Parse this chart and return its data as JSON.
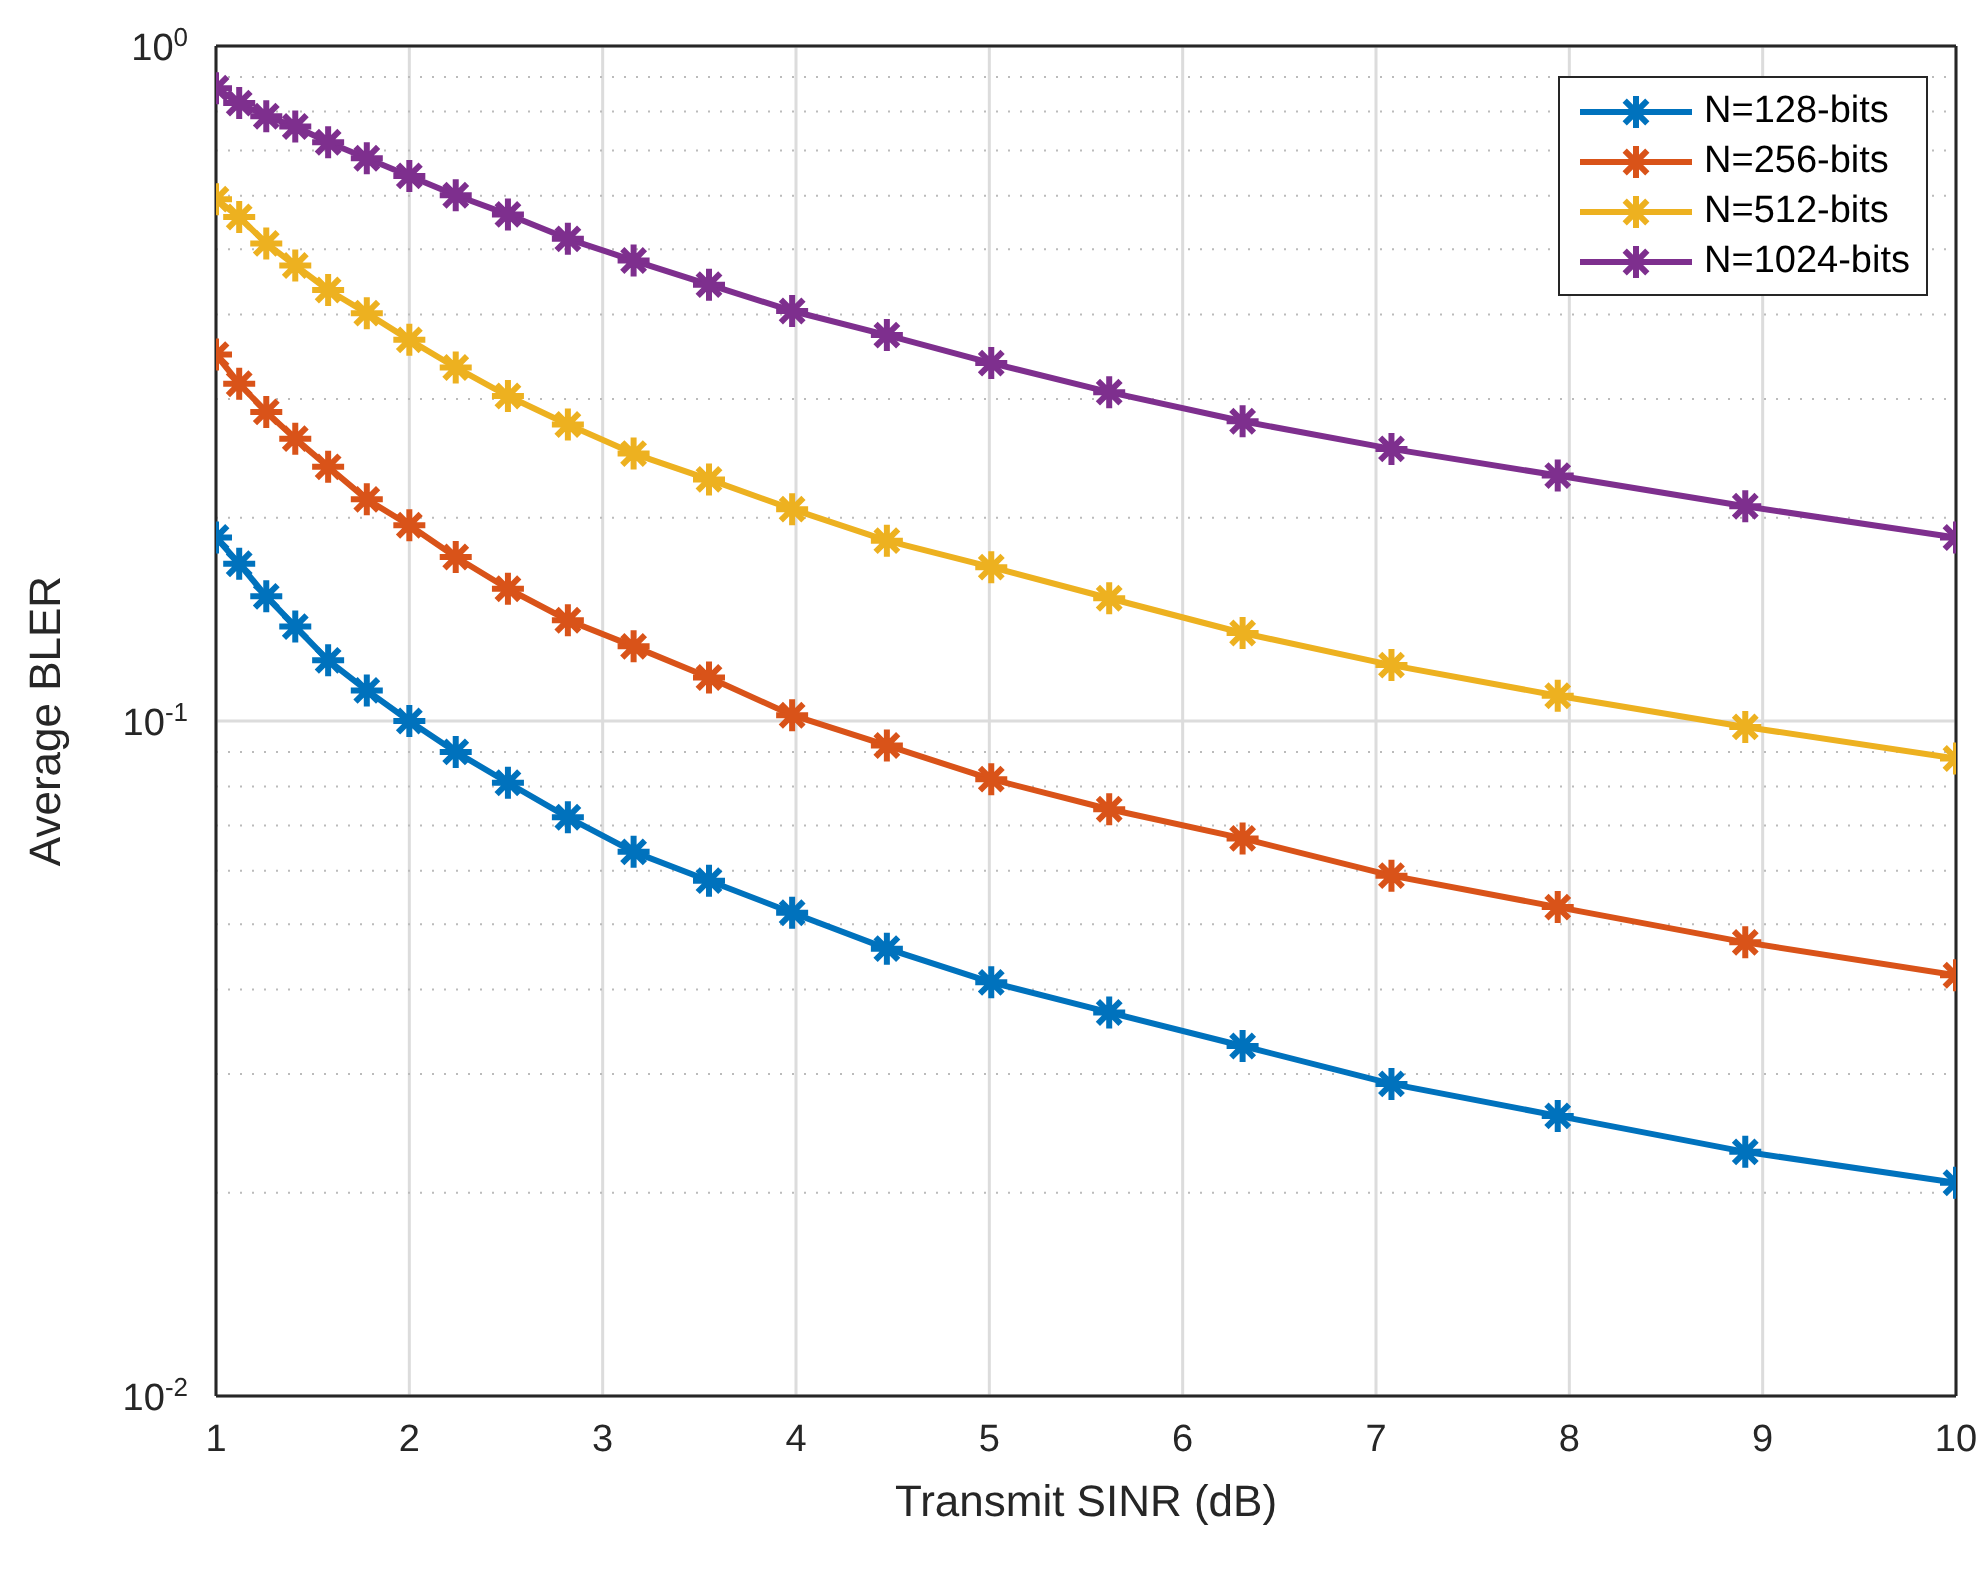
{
  "chart_data": {
    "type": "line",
    "xlabel": "Transmit SINR (dB)",
    "ylabel": "Average BLER",
    "x": [
      1,
      1.12,
      1.26,
      1.41,
      1.58,
      1.78,
      2,
      2.24,
      2.51,
      2.82,
      3.16,
      3.55,
      3.98,
      4.47,
      5.01,
      5.62,
      6.31,
      7.08,
      7.94,
      8.91,
      10
    ],
    "series": [
      {
        "name": "N=128-bits",
        "color": "#0072bd",
        "values": [
          0.187,
          0.171,
          0.153,
          0.138,
          0.123,
          0.111,
          0.1,
          0.09,
          0.081,
          0.072,
          0.064,
          0.058,
          0.052,
          0.046,
          0.041,
          0.037,
          0.033,
          0.029,
          0.026,
          0.023,
          0.0207
        ]
      },
      {
        "name": "N=256-bits",
        "color": "#d95319",
        "values": [
          0.349,
          0.316,
          0.287,
          0.262,
          0.238,
          0.213,
          0.195,
          0.175,
          0.157,
          0.141,
          0.129,
          0.116,
          0.102,
          0.092,
          0.082,
          0.074,
          0.067,
          0.059,
          0.053,
          0.047,
          0.042
        ]
      },
      {
        "name": "N=512-bits",
        "color": "#edb120",
        "values": [
          0.593,
          0.558,
          0.51,
          0.473,
          0.435,
          0.402,
          0.367,
          0.334,
          0.303,
          0.275,
          0.249,
          0.228,
          0.206,
          0.185,
          0.169,
          0.152,
          0.135,
          0.121,
          0.109,
          0.098,
          0.088
        ]
      },
      {
        "name": "N=1024-bits",
        "color": "#7e2f8e",
        "values": [
          0.866,
          0.823,
          0.787,
          0.76,
          0.72,
          0.682,
          0.642,
          0.601,
          0.563,
          0.518,
          0.481,
          0.443,
          0.405,
          0.373,
          0.339,
          0.307,
          0.278,
          0.253,
          0.231,
          0.208,
          0.187
        ]
      }
    ],
    "xlim": [
      1,
      10
    ],
    "xticks": [
      1,
      2,
      3,
      4,
      5,
      6,
      7,
      8,
      9,
      10
    ],
    "ylim": [
      0.01,
      1
    ],
    "yticks": [
      {
        "value": 0.01,
        "label": "10$^{-2}$"
      },
      {
        "value": 0.1,
        "label": "10$^{-1}$"
      },
      {
        "value": 1,
        "label": "10$^{0}$"
      }
    ],
    "log": "y",
    "grid": true,
    "legend": "top right",
    "marker": "cross",
    "line_style": "solid"
  }
}
